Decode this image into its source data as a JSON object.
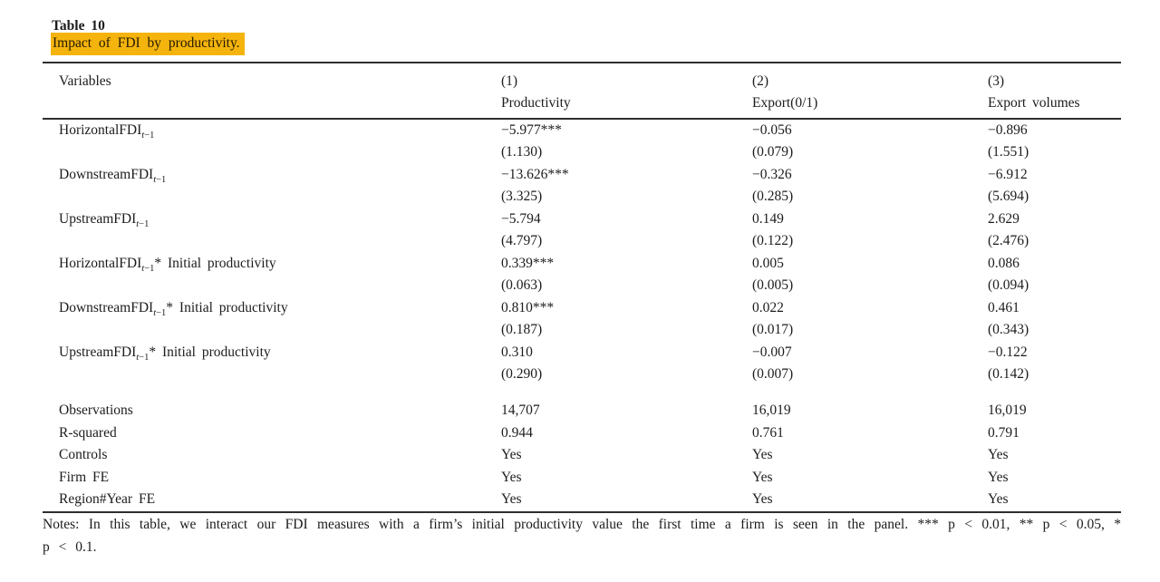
{
  "table": {
    "label": "Table 10",
    "caption": "Impact of FDI by productivity.",
    "caption_highlight_color": "#F5B40D",
    "rule_color": "#2e2e2e",
    "header": {
      "variables_label": "Variables",
      "columns": [
        {
          "number": "(1)",
          "name": "Productivity"
        },
        {
          "number": "(2)",
          "name": "Export(0/1)"
        },
        {
          "number": "(3)",
          "name": "Export volumes"
        }
      ]
    },
    "coefficient_rows": [
      {
        "base": "HorizontalFDI",
        "sub": "t−1",
        "suffix": "",
        "values": [
          "−5.977***",
          "−0.056",
          "−0.896"
        ],
        "se": [
          "(1.130)",
          "(0.079)",
          "(1.551)"
        ]
      },
      {
        "base": "DownstreamFDI",
        "sub": "t−1",
        "suffix": "",
        "values": [
          "−13.626***",
          "−0.326",
          "−6.912"
        ],
        "se": [
          "(3.325)",
          "(0.285)",
          "(5.694)"
        ]
      },
      {
        "base": "UpstreamFDI",
        "sub": "t−1",
        "suffix": "",
        "values": [
          "−5.794",
          "0.149",
          "2.629"
        ],
        "se": [
          "(4.797)",
          "(0.122)",
          "(2.476)"
        ]
      },
      {
        "base": "HorizontalFDI",
        "sub": "t−1",
        "suffix": "* Initial productivity",
        "values": [
          "0.339***",
          "0.005",
          "0.086"
        ],
        "se": [
          "(0.063)",
          "(0.005)",
          "(0.094)"
        ]
      },
      {
        "base": "DownstreamFDI",
        "sub": "t−1",
        "suffix": "* Initial productivity",
        "values": [
          "0.810***",
          "0.022",
          "0.461"
        ],
        "se": [
          "(0.187)",
          "(0.017)",
          "(0.343)"
        ]
      },
      {
        "base": "UpstreamFDI",
        "sub": "t−1",
        "suffix": "* Initial productivity",
        "values": [
          "0.310",
          "−0.007",
          "−0.122"
        ],
        "se": [
          "(0.290)",
          "(0.007)",
          "(0.142)"
        ]
      }
    ],
    "summary_rows": [
      {
        "label": "Observations",
        "values": [
          "14,707",
          "16,019",
          "16,019"
        ]
      },
      {
        "label": "R-squared",
        "values": [
          "0.944",
          "0.761",
          "0.791"
        ]
      },
      {
        "label": "Controls",
        "values": [
          "Yes",
          "Yes",
          "Yes"
        ]
      },
      {
        "label": "Firm FE",
        "values": [
          "Yes",
          "Yes",
          "Yes"
        ]
      },
      {
        "label": "Region#Year FE",
        "values": [
          "Yes",
          "Yes",
          "Yes"
        ]
      }
    ],
    "notes": "Notes: In this table, we interact our FDI measures with a firm’s initial productivity value the first time a firm is seen in the panel. *** p < 0.01, ** p < 0.05, * p < 0.1."
  }
}
